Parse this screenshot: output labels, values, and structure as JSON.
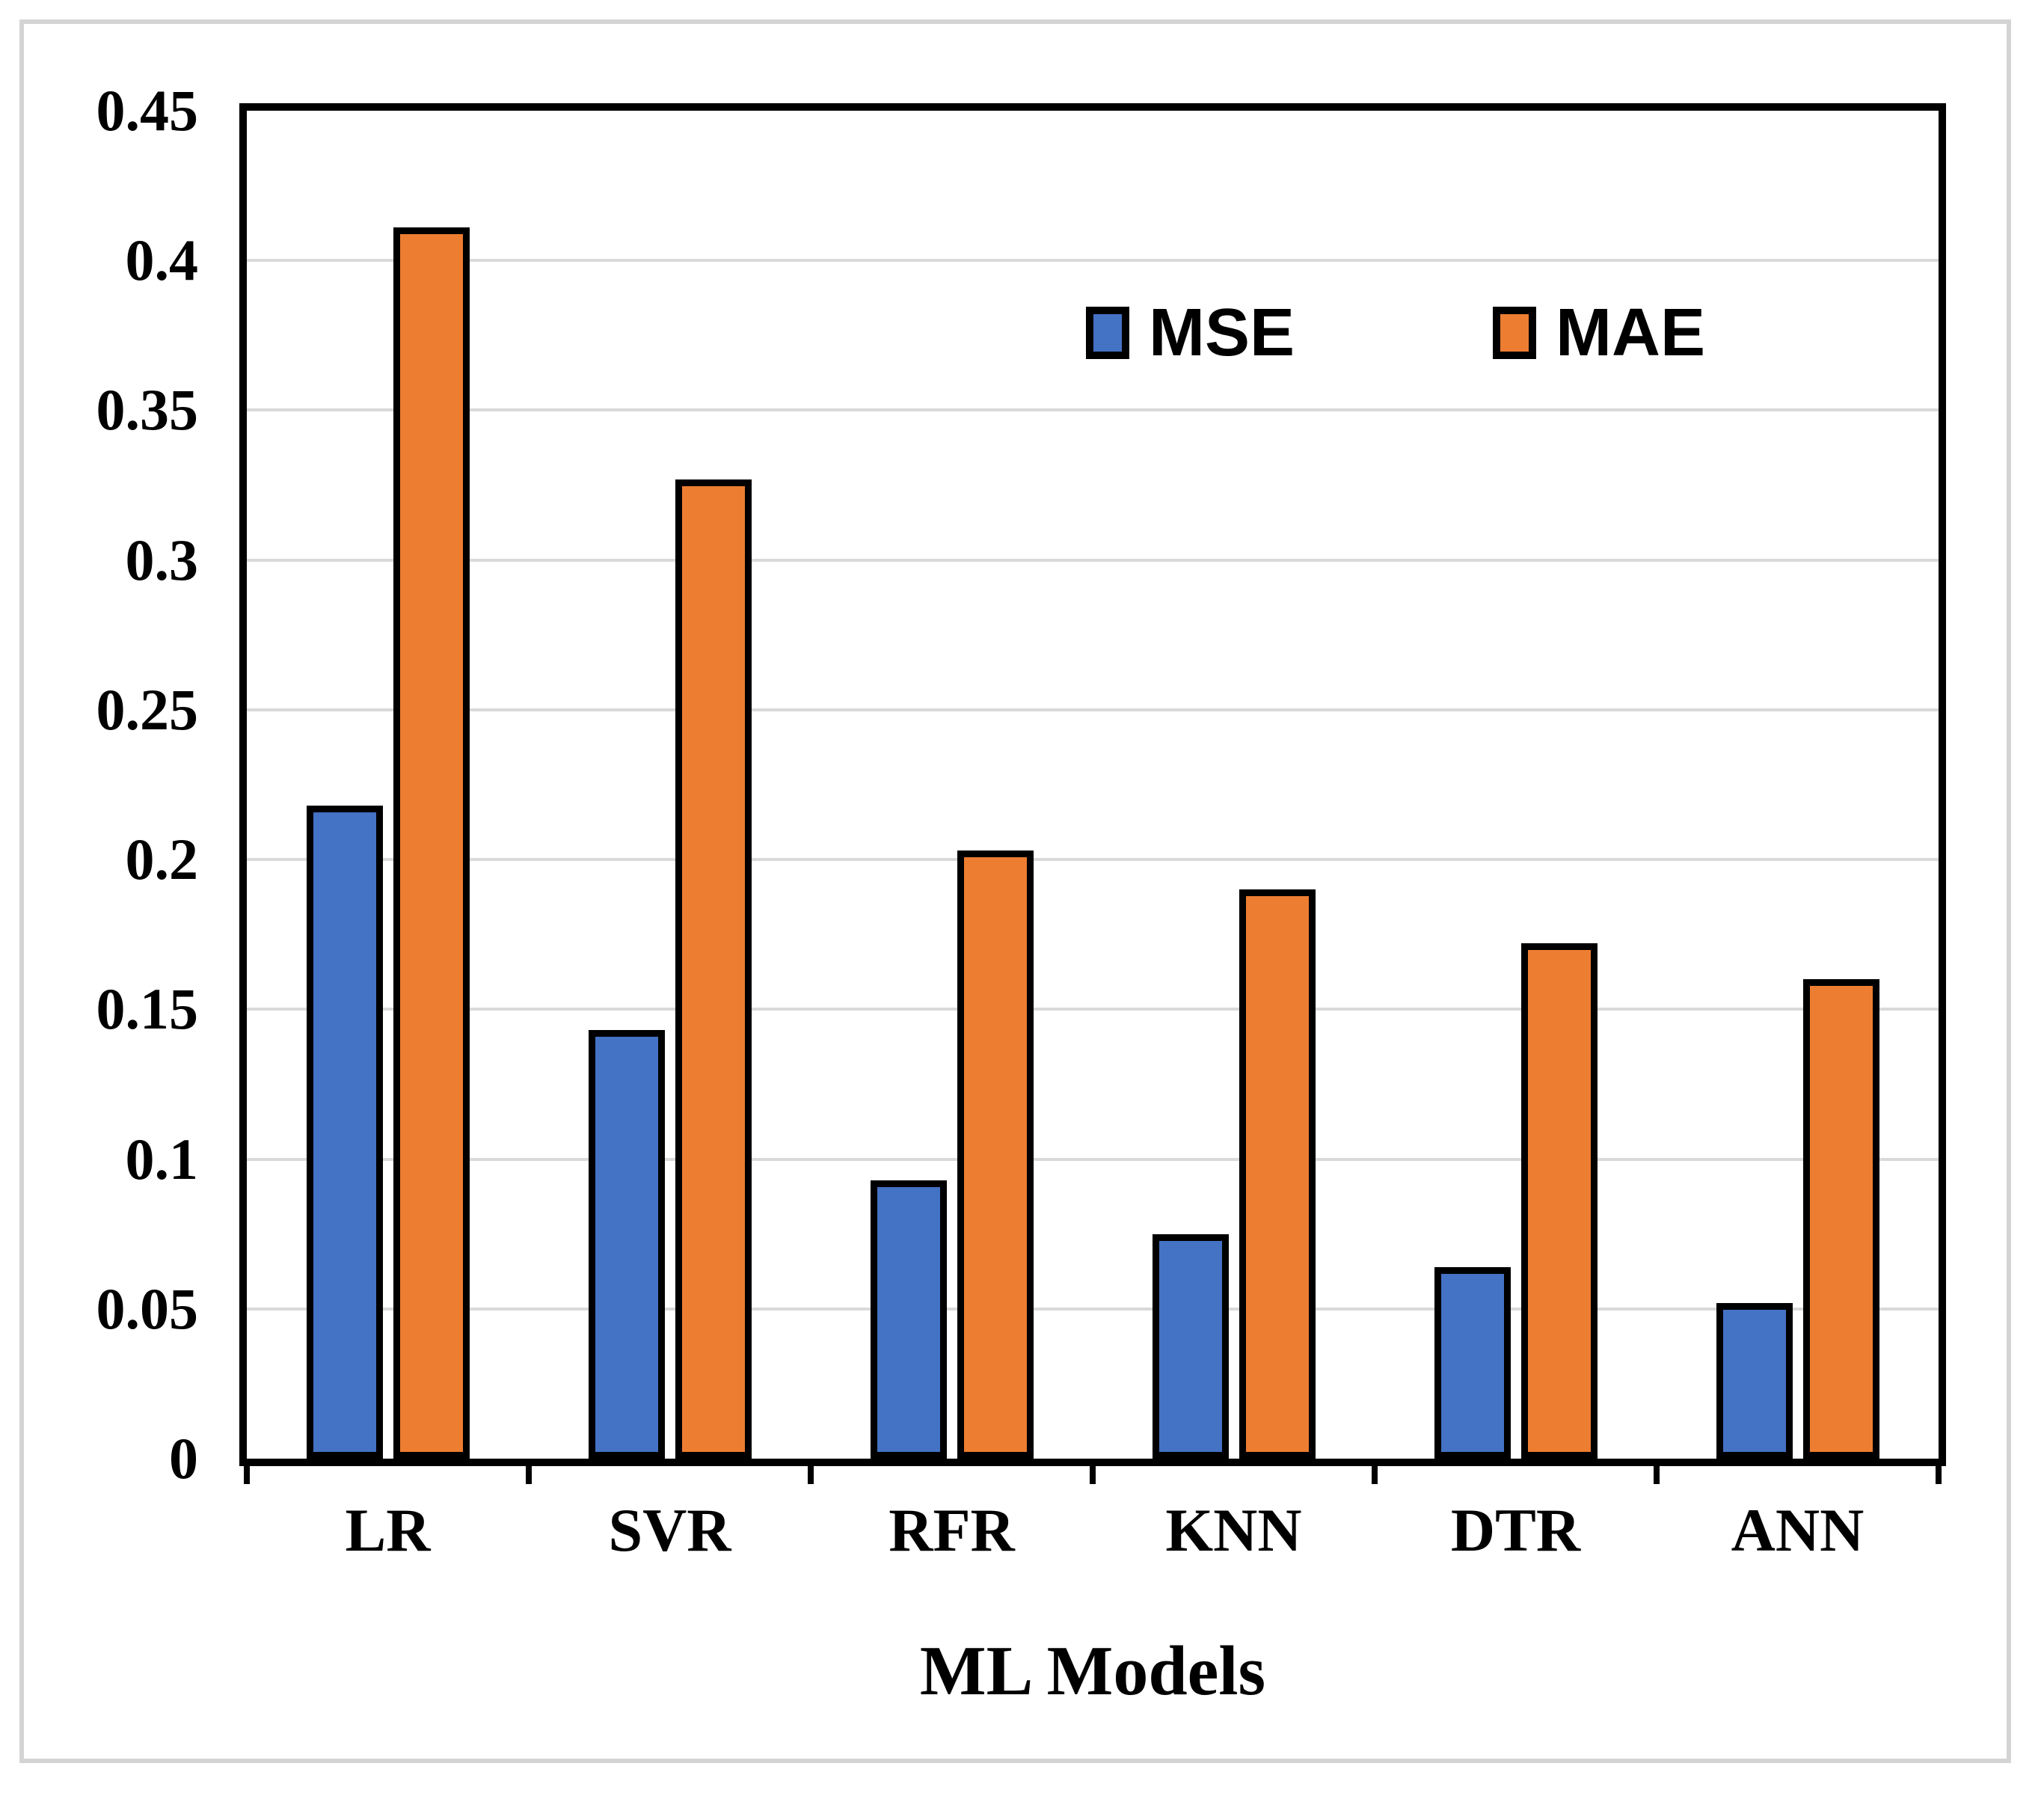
{
  "figure": {
    "background": "#ffffff",
    "border_color": "#d4d4d4"
  },
  "chart_data": {
    "type": "bar",
    "categories": [
      "LR",
      "SVR",
      "RFR",
      "KNN",
      "DTR",
      "ANN"
    ],
    "series": [
      {
        "name": "MSE",
        "color": "#4472C4",
        "values": [
          0.218,
          0.143,
          0.093,
          0.075,
          0.064,
          0.052
        ]
      },
      {
        "name": "MAE",
        "color": "#ED7D31",
        "values": [
          0.411,
          0.327,
          0.203,
          0.19,
          0.172,
          0.16
        ]
      }
    ],
    "title": "",
    "xlabel": "ML Models",
    "ylabel": "",
    "ylim": [
      0,
      0.45
    ],
    "ytick_step": 0.05,
    "ytick_labels": [
      "0",
      "0.05",
      "0.1",
      "0.15",
      "0.2",
      "0.25",
      "0.3",
      "0.35",
      "0.4",
      "0.45"
    ],
    "grid": true,
    "gridline_color": "#d9d9d9",
    "bar_border_color": "#000000",
    "legend_position": "inside-upper-right"
  }
}
